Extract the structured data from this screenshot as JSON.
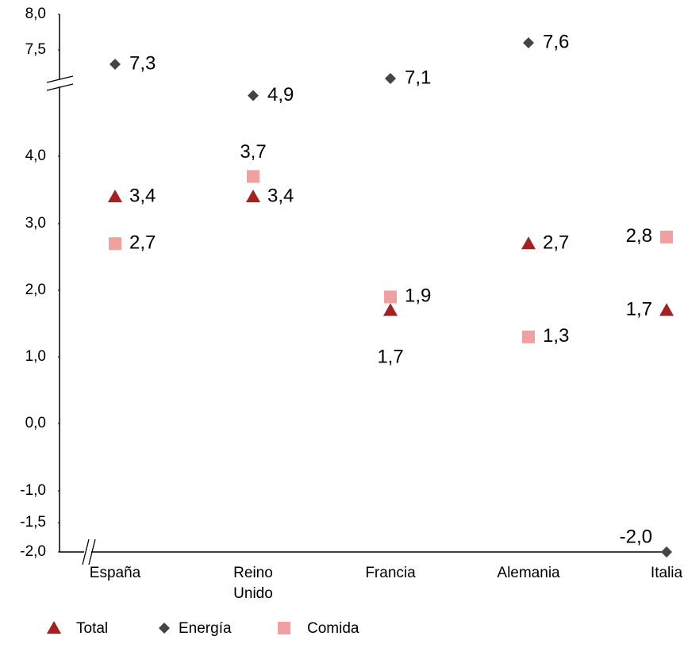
{
  "chart_data": {
    "type": "scatter",
    "categories": [
      "España",
      "Reino Unido",
      "Francia",
      "Alemania",
      "Italia"
    ],
    "series": [
      {
        "name": "Total",
        "color": "#a52020",
        "marker": "triangle",
        "values": [
          3.4,
          3.4,
          1.7,
          2.7,
          1.7
        ],
        "value_labels": [
          "3,4",
          "3,4",
          "1,7",
          "2,7",
          "1,7"
        ]
      },
      {
        "name": "Energía",
        "color": "#444444",
        "marker": "diamond",
        "values": [
          7.3,
          4.9,
          7.1,
          7.6,
          -2.0
        ],
        "value_labels": [
          "7,3",
          "4,9",
          "7,1",
          "7,6",
          "-2,0"
        ]
      },
      {
        "name": "Comida",
        "color": "#f0a0a0",
        "marker": "square",
        "values": [
          2.7,
          3.7,
          1.9,
          1.3,
          2.8
        ],
        "value_labels": [
          "2,7",
          "3,7",
          "1,9",
          "1,3",
          "2,8"
        ]
      }
    ],
    "ylim": [
      -2,
      8
    ],
    "yticks": [
      {
        "value": 8,
        "label": "8,0"
      },
      {
        "value": 7.5,
        "label": "7,5"
      },
      {
        "value": 4,
        "label": "4,0"
      },
      {
        "value": 3,
        "label": "3,0"
      },
      {
        "value": 2,
        "label": "2,0"
      },
      {
        "value": 1,
        "label": "1,0"
      },
      {
        "value": 0,
        "label": "0,0"
      },
      {
        "value": -1,
        "label": "-1,0"
      },
      {
        "value": -1.5,
        "label": "-1,5"
      },
      {
        "value": -2,
        "label": "-2,0"
      }
    ],
    "grid": false,
    "legend": "bottom"
  }
}
